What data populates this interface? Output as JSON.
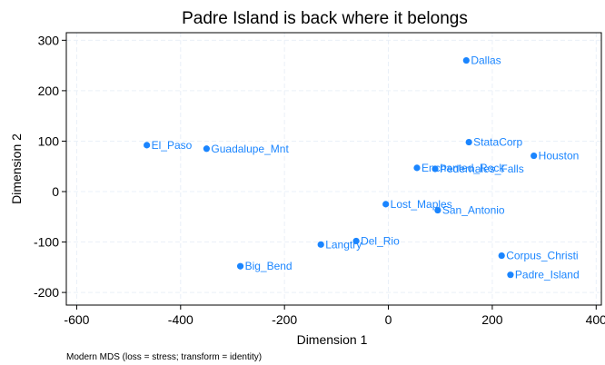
{
  "chart_data": {
    "type": "scatter",
    "title": "Padre Island is back where it belongs",
    "xlabel": "Dimension 1",
    "ylabel": "Dimension 2",
    "note": "Modern MDS (loss = stress; transform = identity)",
    "xlim": [
      -620,
      410
    ],
    "ylim": [
      -225,
      315
    ],
    "xticks": [
      -600,
      -400,
      -200,
      0,
      200,
      400
    ],
    "yticks": [
      300,
      200,
      100,
      0,
      -100,
      -200
    ],
    "grid": true,
    "marker_color": "#1a85ff",
    "label_color": "#1a85ff",
    "points": [
      {
        "label": "Dallas",
        "x": 150,
        "y": 260
      },
      {
        "label": "StataCorp",
        "x": 155,
        "y": 98
      },
      {
        "label": "Houston",
        "x": 280,
        "y": 71
      },
      {
        "label": "El_Paso",
        "x": -465,
        "y": 92
      },
      {
        "label": "Guadalupe_Mnt",
        "x": -350,
        "y": 85
      },
      {
        "label": "Pedernales_Falls",
        "x": 90,
        "y": 45
      },
      {
        "label": "Enchanted_Rock",
        "x": 55,
        "y": 47
      },
      {
        "label": "Lost_Maples",
        "x": -5,
        "y": -25
      },
      {
        "label": "San_Antonio",
        "x": 95,
        "y": -37
      },
      {
        "label": "Del_Rio",
        "x": -62,
        "y": -98
      },
      {
        "label": "Langtry",
        "x": -130,
        "y": -105
      },
      {
        "label": "Big_Bend",
        "x": -285,
        "y": -148
      },
      {
        "label": "Corpus_Christi",
        "x": 218,
        "y": -127
      },
      {
        "label": "Padre_Island",
        "x": 235,
        "y": -165
      }
    ]
  }
}
